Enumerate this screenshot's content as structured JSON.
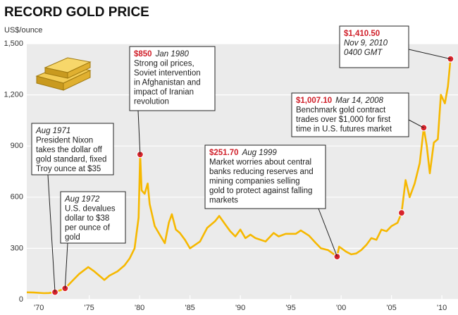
{
  "chart_data": {
    "type": "line",
    "title": "RECORD GOLD PRICE",
    "y_label": "US$/ounce",
    "color": "#f6b800",
    "marker_color": "#d7232b",
    "grid": true,
    "xlim": [
      1968.8,
      2011.6
    ],
    "ylim": [
      0,
      1500
    ],
    "xticks": [
      {
        "value": 1970,
        "label": "'70"
      },
      {
        "value": 1975,
        "label": "'75"
      },
      {
        "value": 1980,
        "label": "'80"
      },
      {
        "value": 1985,
        "label": "'85"
      },
      {
        "value": 1990,
        "label": "'90"
      },
      {
        "value": 1995,
        "label": "'95"
      },
      {
        "value": 2000,
        "label": "'00"
      },
      {
        "value": 2005,
        "label": "'05"
      },
      {
        "value": 2010,
        "label": "'10"
      }
    ],
    "yticks": [
      0,
      300,
      600,
      900,
      {
        "value": 1200,
        "label": "1,200"
      },
      {
        "value": 1500,
        "label": "1,500"
      }
    ],
    "x": [
      1968.8,
      1969.5,
      1970.5,
      1971.0,
      1971.6,
      1972.6,
      1973.5,
      1974.0,
      1974.9,
      1975.5,
      1976.5,
      1977.0,
      1977.8,
      1978.5,
      1979.0,
      1979.5,
      1979.9,
      1980.05,
      1980.2,
      1980.5,
      1980.8,
      1981.0,
      1981.5,
      1982.0,
      1982.5,
      1982.9,
      1983.2,
      1983.6,
      1984.0,
      1984.5,
      1985.0,
      1985.5,
      1986.0,
      1986.7,
      1987.5,
      1987.9,
      1988.5,
      1989.0,
      1989.5,
      1990.0,
      1990.5,
      1991.0,
      1991.5,
      1992.5,
      1993.3,
      1993.8,
      1994.5,
      1995.5,
      1996.0,
      1996.8,
      1997.5,
      1998.0,
      1998.7,
      1999.6,
      1999.8,
      2000.5,
      2001.0,
      2001.5,
      2002.0,
      2002.5,
      2003.0,
      2003.5,
      2004.0,
      2004.5,
      2005.0,
      2005.6,
      2006.0,
      2006.4,
      2006.8,
      2007.3,
      2007.8,
      2008.2,
      2008.5,
      2008.8,
      2009.2,
      2009.6,
      2009.9,
      2010.3,
      2010.6,
      2010.86
    ],
    "values": [
      42,
      41,
      37,
      38,
      43,
      65,
      120,
      150,
      190,
      165,
      115,
      140,
      165,
      200,
      240,
      300,
      480,
      850,
      640,
      620,
      680,
      560,
      430,
      380,
      330,
      450,
      500,
      410,
      390,
      350,
      300,
      320,
      340,
      420,
      460,
      490,
      440,
      400,
      370,
      410,
      360,
      380,
      360,
      340,
      390,
      370,
      385,
      385,
      405,
      375,
      330,
      300,
      290,
      251.7,
      310,
      280,
      265,
      270,
      290,
      320,
      360,
      350,
      410,
      400,
      430,
      450,
      508,
      700,
      600,
      680,
      800,
      1007.1,
      900,
      740,
      920,
      940,
      1200,
      1150,
      1250,
      1410.5
    ],
    "points": [
      {
        "x": 1971.6,
        "value": 43,
        "date": "Aug 1971",
        "text": [
          "President Nixon",
          "takes the dollar off",
          "gold standard, fixed",
          "Troy ounce at $35"
        ]
      },
      {
        "x": 1972.6,
        "value": 65,
        "date": "Aug 1972",
        "text": [
          "U.S. devalues",
          "dollar to $38",
          "per ounce of",
          "gold"
        ]
      },
      {
        "x": 1980.05,
        "value": 850,
        "label": "$850",
        "date": "Jan 1980",
        "text": [
          "Strong oil prices,",
          "Soviet intervention",
          "in Afghanistan and",
          "impact of Iranian",
          "revolution"
        ]
      },
      {
        "x": 1999.6,
        "value": 251.7,
        "label": "$251.70",
        "date": "Aug 1999",
        "text": [
          "Market worries about central",
          "banks reducing reserves and",
          "mining companies selling",
          "gold to protect against falling",
          "markets"
        ]
      },
      {
        "x": 2006.0,
        "value": 508
      },
      {
        "x": 2008.2,
        "value": 1007.1,
        "label": "$1,007.10",
        "date": "Mar 14, 2008",
        "text": [
          "Benchmark gold contract",
          "trades over $1,000 for first",
          "time in U.S. futures market"
        ]
      },
      {
        "x": 2010.86,
        "value": 1410.5,
        "label": "$1,410.50",
        "date": "Nov 9, 2010",
        "text": [
          "0400 GMT"
        ]
      }
    ]
  }
}
